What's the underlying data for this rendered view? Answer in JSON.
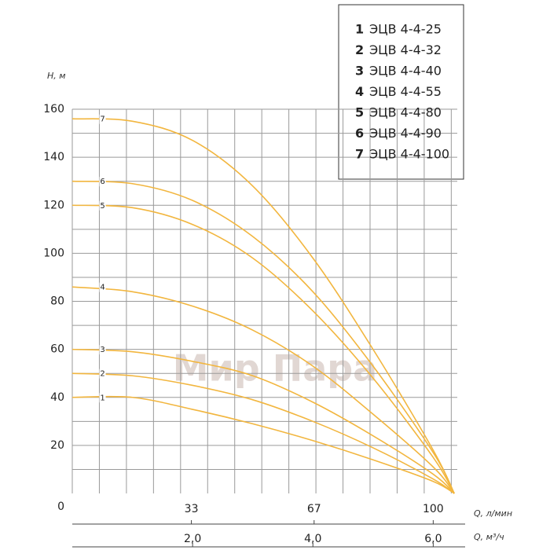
{
  "chart_data": {
    "type": "line",
    "y_label": "H, м",
    "x_label": "Q, м³/ч",
    "x2_label": "Q, л/мин",
    "watermark": "Мир Пара",
    "x": [
      0,
      1,
      2,
      3,
      4,
      5,
      6,
      6.35
    ],
    "xlim": [
      0,
      6.4
    ],
    "xticks": [
      {
        "value": 2,
        "label": "2,0"
      },
      {
        "value": 4,
        "label": "4,0"
      },
      {
        "value": 6,
        "label": "6,0"
      }
    ],
    "x2lim": [
      0,
      106.67
    ],
    "x2ticks": [
      33,
      67,
      100
    ],
    "ylim": [
      0,
      160
    ],
    "yticks": [
      0,
      20,
      40,
      60,
      80,
      100,
      120,
      140,
      160
    ],
    "ygrid": [
      10,
      20,
      30,
      40,
      50,
      60,
      70,
      80,
      90,
      100,
      110,
      120,
      130,
      140,
      150,
      160
    ],
    "xgrid": [
      0,
      0.45,
      0.9,
      1.35,
      1.8,
      2.25,
      2.7,
      3.15,
      3.6,
      4.05,
      4.5,
      4.95,
      5.4,
      5.85,
      6.3
    ],
    "grid": true,
    "series": [
      {
        "name": "ЭЦВ 4-4-25",
        "label": "1",
        "color": "#f2b63f",
        "values": [
          40,
          40,
          35,
          29,
          22,
          14,
          5,
          0
        ]
      },
      {
        "name": "ЭЦВ 4-4-32",
        "label": "2",
        "color": "#f2b63f",
        "values": [
          50,
          49,
          45,
          39,
          30,
          19,
          6,
          0
        ]
      },
      {
        "name": "ЭЦВ 4-4-40",
        "label": "3",
        "color": "#f2b63f",
        "values": [
          60,
          59,
          55,
          49,
          38,
          24,
          8,
          0
        ]
      },
      {
        "name": "ЭЦВ 4-4-55",
        "label": "4",
        "color": "#f2b63f",
        "values": [
          86,
          84,
          78,
          68,
          53,
          33,
          11,
          0
        ]
      },
      {
        "name": "ЭЦВ 4-4-80",
        "label": "5",
        "color": "#f2b63f",
        "values": [
          120,
          119,
          112,
          98,
          76,
          48,
          15,
          0
        ]
      },
      {
        "name": "ЭЦВ 4-4-90",
        "label": "6",
        "color": "#f2b63f",
        "values": [
          130,
          129,
          122,
          107,
          84,
          53,
          17,
          0
        ]
      },
      {
        "name": "ЭЦВ 4-4-100",
        "label": "7",
        "color": "#f2b63f",
        "values": [
          156,
          155,
          147,
          128,
          98,
          60,
          18,
          0
        ]
      }
    ]
  }
}
